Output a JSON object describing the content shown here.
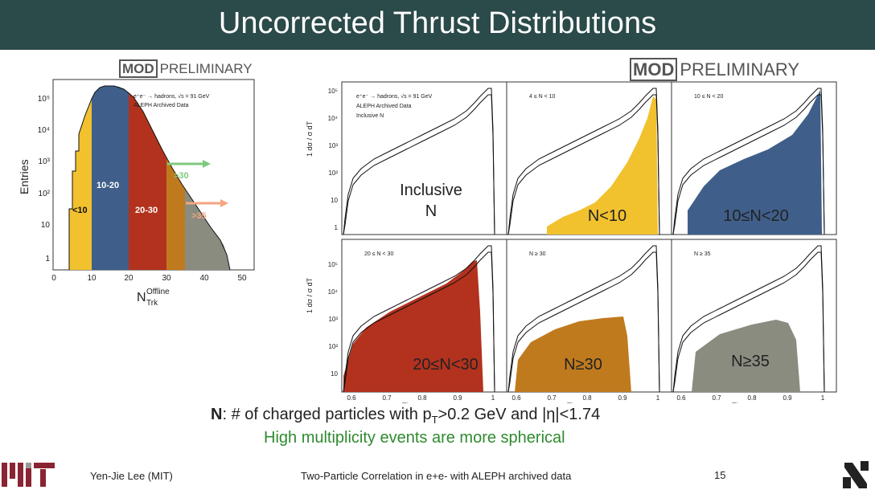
{
  "slide": {
    "title": "Uncorrected Thrust Distributions",
    "badge_left": {
      "mod": "MOD",
      "text": "PRELIMINARY"
    },
    "badge_right": {
      "mod": "MOD",
      "text": "PRELIMINARY"
    }
  },
  "left_plot": {
    "ylabel": "Entries",
    "xlabel": "N",
    "xlabel_sup": "Offline",
    "xlabel_sub": "Trk",
    "legend_line1": "e⁺e⁻ → hadrons, √s = 91 GeV",
    "legend_line2": "ALEPH Archived Data",
    "y_ticks": [
      "10⁵",
      "10⁴",
      "10³",
      "10²",
      "10",
      "1"
    ],
    "x_ticks": [
      "0",
      "10",
      "20",
      "30",
      "40",
      "50"
    ],
    "region_labels": {
      "lt10": "<10",
      "r10_20": "10-20",
      "r20_30": "20-30",
      "gt30": ">30",
      "gt35": ">35"
    },
    "colors": {
      "lt10": "#f2c12e",
      "r10_20": "#3f5f8a",
      "r20_30": "#b3321e",
      "r30_35": "#c07a1e",
      "gt35": "#8a8c80",
      "arrow30": "#7fc97f",
      "arrow35": "#f4a582"
    }
  },
  "grid": {
    "y_ticks_top": [
      "10⁵",
      "10⁴",
      "10³",
      "10²",
      "10",
      "1"
    ],
    "y_ticks_bottom": [
      "10⁵",
      "10⁴",
      "10³",
      "10²",
      "10"
    ],
    "x_ticks": [
      "0.6",
      "0.7",
      "0.8",
      "0.9",
      "1"
    ],
    "xlabel": "Thrust",
    "ylabel": "1 dσ / σ dT",
    "panels": [
      {
        "label": "Inclusive\nN",
        "line1": "Inclusive",
        "line2": "N",
        "legend": [
          "e⁺e⁻ → hadrons, √s = 91 GeV",
          "ALEPH Archived Data",
          "Inclusive N"
        ],
        "fill": "none"
      },
      {
        "label": "N<10",
        "legend": [
          "4 ≤ N < 10"
        ],
        "fill": "#f2c12e"
      },
      {
        "label": "10≤N<20",
        "legend": [
          "10 ≤ N < 20"
        ],
        "fill": "#3f5f8a"
      },
      {
        "label": "20≤N<30",
        "legend": [
          "20 ≤ N < 30"
        ],
        "fill": "#b3321e"
      },
      {
        "label": "N≥30",
        "legend": [
          "N ≥ 30"
        ],
        "fill": "#c07a1e"
      },
      {
        "label": "N≥35",
        "legend": [
          "N ≥ 35"
        ],
        "fill": "#8a8c80"
      }
    ]
  },
  "caption": {
    "line1_prefix": "N",
    "line1_text": ": # of charged particles with p",
    "line1_sub": "T",
    "line1_rest": ">0.2 GeV and |η|<1.74",
    "line2": "High multiplicity events are more spherical"
  },
  "footer": {
    "logo": "MIT",
    "author": "Yen-Jie Lee (MIT)",
    "talk": "Two-Particle Correlation in e+e- with ALEPH archived data",
    "page": "15"
  }
}
